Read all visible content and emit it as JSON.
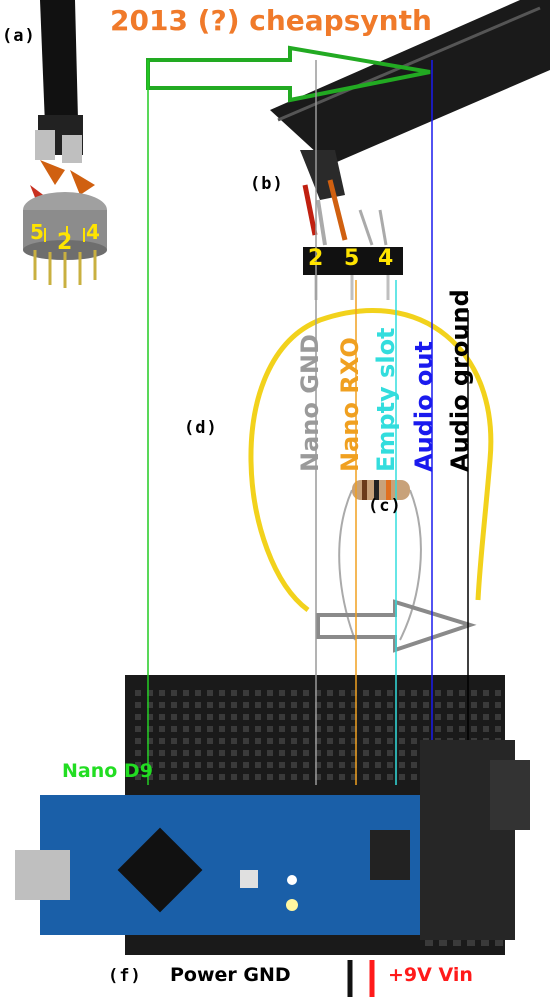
{
  "title": "2013 (?) cheapsynth",
  "markers": {
    "a": "(a)",
    "b": "(b)",
    "c": "(c)",
    "d": "(d)",
    "f": "(f)"
  },
  "connector_pins": {
    "five": "5",
    "two": "2",
    "four": "4"
  },
  "header_pins": {
    "two": "2",
    "five": "5",
    "four": "4"
  },
  "wire_labels": {
    "nano_gnd": "Nano GND",
    "nano_rxo": "Nano RXO",
    "empty_slot": "Empty slot",
    "audio_out": "Audio out",
    "audio_ground": "Audio ground"
  },
  "nano_d9": "Nano D9",
  "power_gnd": "Power GND",
  "vin": "+9V Vin",
  "colors": {
    "title": "#f07a2a",
    "green_line": "#22cc22",
    "gray_line": "#9a9a9a",
    "orange_line": "#f0a020",
    "cyan_line": "#33dddd",
    "blue_line": "#1a1aee",
    "black_line": "#000000",
    "arduino_blue": "#1a5fa8",
    "breadboard": "#1a1a1a",
    "yellow_wire": "#f2d21c",
    "vin_red": "#ff1a1a"
  }
}
